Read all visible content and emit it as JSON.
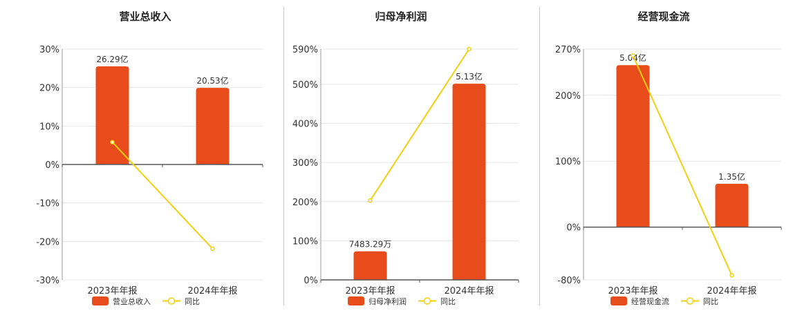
{
  "chart_data": [
    {
      "type": "bar",
      "title": "营业总收入",
      "categories": [
        "2023年年报",
        "2024年年报"
      ],
      "bar_series": {
        "name": "营业总收入",
        "values": [
          26.29,
          20.53
        ],
        "labels": [
          "26.29亿",
          "20.53亿"
        ],
        "color": "#e84c1b"
      },
      "line_series": {
        "name": "同比",
        "values": [
          5.8,
          -21.9
        ],
        "color": "#f2cf0e"
      },
      "yticks": [
        30,
        20,
        10,
        0,
        -10,
        -20,
        -30
      ],
      "ytick_labels": [
        "30%",
        "20%",
        "10%",
        "0%",
        "-10%",
        "-20%",
        "-30%"
      ],
      "ylim": [
        -30,
        30
      ],
      "grid": true
    },
    {
      "type": "bar",
      "title": "归母净利润",
      "categories": [
        "2023年年报",
        "2024年年报"
      ],
      "bar_series": {
        "name": "归母净利润",
        "values": [
          0.748329,
          5.13
        ],
        "labels": [
          "7483.29万",
          "5.13亿"
        ],
        "color": "#e84c1b"
      },
      "line_series": {
        "name": "同比",
        "values": [
          203,
          590
        ],
        "color": "#f2cf0e"
      },
      "yticks": [
        590,
        500,
        400,
        300,
        200,
        100,
        0
      ],
      "ytick_labels": [
        "590%",
        "500%",
        "400%",
        "300%",
        "200%",
        "100%",
        "0%"
      ],
      "ylim": [
        0,
        590
      ],
      "grid": true
    },
    {
      "type": "bar",
      "title": "经营现金流",
      "categories": [
        "2023年年报",
        "2024年年报"
      ],
      "bar_series": {
        "name": "经营现金流",
        "values": [
          5.04,
          1.35
        ],
        "labels": [
          "5.04亿",
          "1.35亿"
        ],
        "color": "#e84c1b"
      },
      "line_series": {
        "name": "同比",
        "values": [
          260,
          -73
        ],
        "color": "#f2cf0e"
      },
      "yticks": [
        270,
        200,
        100,
        0,
        -80
      ],
      "ytick_labels": [
        "270%",
        "200%",
        "100%",
        "0%",
        "-80%"
      ],
      "ylim": [
        -80,
        270
      ],
      "grid": true
    }
  ]
}
